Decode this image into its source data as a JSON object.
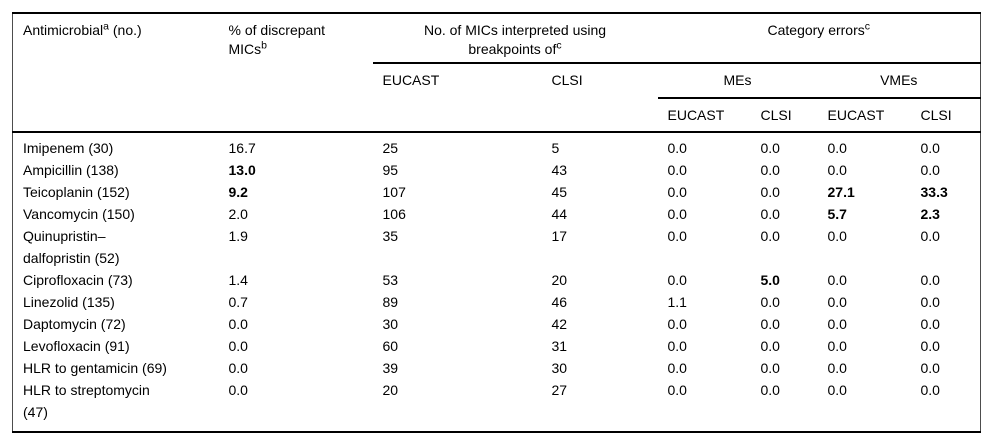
{
  "page": {
    "background": "#ffffff"
  },
  "colors": {
    "rule": "#000000",
    "side_rule": "#4d4d4d",
    "text": "#000000",
    "background": "#ffffff"
  },
  "table": {
    "header": {
      "antimicrobial": {
        "text": "Antimicrobial",
        "sup": "a",
        "suffix": " (no.)"
      },
      "discrepant": {
        "text": "% of discrepant MICs",
        "sup": "b"
      },
      "breakpoints_group": {
        "text": "No. of MICs interpreted using breakpoints of",
        "sup": "c"
      },
      "category_errors_group": {
        "text": "Category errors",
        "sup": "c"
      },
      "sub_breakpoints": [
        "EUCAST",
        "CLSI"
      ],
      "mes_group": "MEs",
      "vmes_group": "VMEs",
      "sub_errors": [
        "EUCAST",
        "CLSI",
        "EUCAST",
        "CLSI"
      ]
    },
    "rows": [
      {
        "name": "Imipenem (30)",
        "values": [
          "16.7",
          "25",
          "5",
          "0.0",
          "0.0",
          "0.0",
          "0.0"
        ],
        "bold": []
      },
      {
        "name": "Ampicillin (138)",
        "values": [
          "13.0",
          "95",
          "43",
          "0.0",
          "0.0",
          "0.0",
          "0.0"
        ],
        "bold": [
          0
        ]
      },
      {
        "name": "Teicoplanin (152)",
        "values": [
          "9.2",
          "107",
          "45",
          "0.0",
          "0.0",
          "27.1",
          "33.3"
        ],
        "bold": [
          0,
          5,
          6
        ]
      },
      {
        "name": "Vancomycin (150)",
        "values": [
          "2.0",
          "106",
          "44",
          "0.0",
          "0.0",
          "5.7",
          "2.3"
        ],
        "bold": [
          5,
          6
        ]
      },
      {
        "name": "Quinupristin–dalfopristin (52)",
        "values": [
          "1.9",
          "35",
          "17",
          "0.0",
          "0.0",
          "0.0",
          "0.0"
        ],
        "bold": []
      },
      {
        "name": "Ciprofloxacin (73)",
        "values": [
          "1.4",
          "53",
          "20",
          "0.0",
          "5.0",
          "0.0",
          "0.0"
        ],
        "bold": [
          4
        ]
      },
      {
        "name": "Linezolid (135)",
        "values": [
          "0.7",
          "89",
          "46",
          "1.1",
          "0.0",
          "0.0",
          "0.0"
        ],
        "bold": []
      },
      {
        "name": "Daptomycin (72)",
        "values": [
          "0.0",
          "30",
          "42",
          "0.0",
          "0.0",
          "0.0",
          "0.0"
        ],
        "bold": []
      },
      {
        "name": "Levofloxacin (91)",
        "values": [
          "0.0",
          "60",
          "31",
          "0.0",
          "0.0",
          "0.0",
          "0.0"
        ],
        "bold": []
      },
      {
        "name": "HLR to gentamicin (69)",
        "values": [
          "0.0",
          "39",
          "30",
          "0.0",
          "0.0",
          "0.0",
          "0.0"
        ],
        "bold": []
      },
      {
        "name": "HLR to streptomycin (47)",
        "values": [
          "0.0",
          "20",
          "27",
          "0.0",
          "0.0",
          "0.0",
          "0.0"
        ],
        "bold": []
      }
    ]
  }
}
